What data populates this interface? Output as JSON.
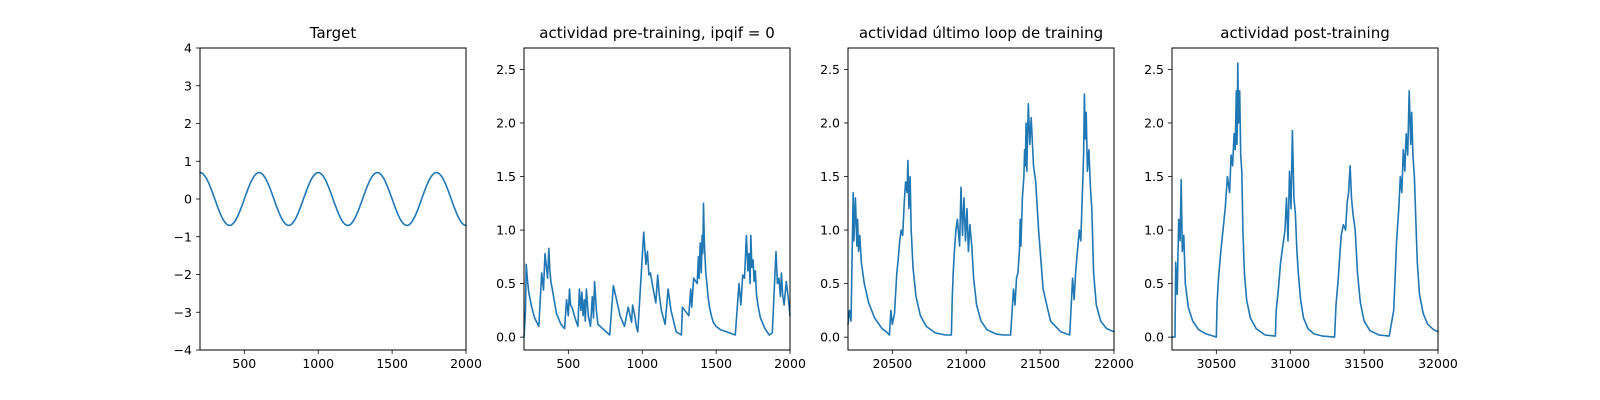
{
  "figure": {
    "background": "#ffffff",
    "line_color": "#1f77b4"
  },
  "chart_data": [
    {
      "type": "line",
      "title": "Target",
      "xlabel": "",
      "ylabel": "",
      "xlim": [
        200,
        2000
      ],
      "ylim": [
        -4,
        4
      ],
      "xticks": [
        500,
        1000,
        1500,
        2000
      ],
      "yticks": [
        -4,
        -3,
        -2,
        -1,
        0,
        1,
        2,
        3,
        4
      ],
      "grid": false,
      "series": [
        {
          "function": "sine",
          "amplitude": 0.7,
          "period": 400,
          "peak_x": 200,
          "points": 361
        }
      ]
    },
    {
      "type": "line",
      "title": "actividad pre-training, ipqif = 0",
      "xlabel": "",
      "ylabel": "",
      "xlim": [
        200,
        2000
      ],
      "ylim": [
        -0.12,
        2.7
      ],
      "xticks": [
        500,
        1000,
        1500,
        2000
      ],
      "yticks": [
        0.0,
        0.5,
        1.0,
        1.5,
        2.0,
        2.5
      ],
      "ytick_decimals": 1,
      "grid": false,
      "series": [
        {
          "x": [
            200,
            210,
            215,
            222,
            232,
            252,
            272,
            300,
            320,
            332,
            342,
            360,
            368,
            375,
            382,
            395,
            420,
            450,
            475,
            488,
            500,
            508,
            515,
            525,
            545,
            565,
            575,
            585,
            592,
            600,
            608,
            615,
            622,
            635,
            650,
            662,
            670,
            678,
            690,
            700,
            780,
            805,
            850,
            880,
            905,
            928,
            935,
            950,
            960,
            970,
            1010,
            1025,
            1035,
            1045,
            1055,
            1070,
            1092,
            1105,
            1115,
            1130,
            1155,
            1175,
            1195,
            1230,
            1265,
            1272,
            1315,
            1328,
            1335,
            1348,
            1372,
            1380,
            1385,
            1392,
            1400,
            1405,
            1410,
            1415,
            1420,
            1425,
            1430,
            1438,
            1445,
            1455,
            1468,
            1480,
            1500,
            1530,
            1570,
            1630,
            1655,
            1668,
            1680,
            1692,
            1705,
            1715,
            1722,
            1730,
            1735,
            1742,
            1750,
            1757,
            1765,
            1773,
            1783,
            1800,
            1830,
            1860,
            1880,
            1905,
            1915,
            1925,
            1935,
            1942,
            1950,
            1960,
            1975,
            1990,
            2000
          ],
          "y": [
            0.0,
            0.25,
            0.68,
            0.55,
            0.42,
            0.28,
            0.18,
            0.1,
            0.6,
            0.44,
            0.78,
            0.55,
            0.83,
            0.62,
            0.52,
            0.42,
            0.22,
            0.12,
            0.08,
            0.35,
            0.2,
            0.45,
            0.3,
            0.28,
            0.18,
            0.1,
            0.45,
            0.25,
            0.42,
            0.2,
            0.35,
            0.15,
            0.45,
            0.2,
            0.1,
            0.38,
            0.18,
            0.52,
            0.25,
            0.12,
            0.02,
            0.48,
            0.2,
            0.1,
            0.28,
            0.14,
            0.3,
            0.2,
            0.1,
            0.05,
            0.98,
            0.68,
            0.8,
            0.58,
            0.6,
            0.48,
            0.32,
            0.58,
            0.4,
            0.25,
            0.12,
            0.45,
            0.25,
            0.05,
            0.02,
            0.28,
            0.2,
            0.45,
            0.28,
            0.55,
            0.5,
            0.75,
            0.55,
            0.88,
            0.6,
            0.95,
            0.78,
            1.25,
            0.9,
            0.75,
            0.6,
            0.5,
            0.38,
            0.28,
            0.2,
            0.14,
            0.1,
            0.07,
            0.05,
            0.02,
            0.5,
            0.3,
            0.58,
            0.55,
            0.95,
            0.62,
            0.78,
            0.5,
            0.95,
            0.65,
            0.72,
            0.52,
            0.62,
            0.4,
            0.3,
            0.18,
            0.08,
            0.02,
            0.04,
            0.8,
            0.5,
            0.55,
            0.38,
            0.6,
            0.4,
            0.3,
            0.52,
            0.35,
            0.2
          ]
        }
      ]
    },
    {
      "type": "line",
      "title": "actividad último loop de training",
      "xlabel": "",
      "ylabel": "",
      "xlim": [
        20200,
        22000
      ],
      "ylim": [
        -0.12,
        2.7
      ],
      "xticks": [
        20500,
        21000,
        21500,
        22000
      ],
      "yticks": [
        0.0,
        0.5,
        1.0,
        1.5,
        2.0,
        2.5
      ],
      "ytick_decimals": 1,
      "grid": false,
      "series": [
        {
          "x": [
            20200,
            20210,
            20220,
            20235,
            20240,
            20250,
            20260,
            20265,
            20272,
            20280,
            20290,
            20310,
            20340,
            20380,
            20430,
            20460,
            20480,
            20490,
            20500,
            20515,
            20530,
            20540,
            20550,
            20560,
            20570,
            20580,
            20590,
            20600,
            20605,
            20612,
            20620,
            20628,
            20640,
            20660,
            20690,
            20730,
            20790,
            20860,
            20900,
            20905,
            20912,
            20920,
            20930,
            20940,
            20955,
            20965,
            20975,
            20985,
            20995,
            21005,
            21015,
            21025,
            21038,
            21050,
            21070,
            21100,
            21140,
            21200,
            21250,
            21300,
            21320,
            21330,
            21340,
            21350,
            21360,
            21365,
            21370,
            21380,
            21390,
            21395,
            21400,
            21405,
            21410,
            21420,
            21430,
            21440,
            21455,
            21470,
            21490,
            21520,
            21570,
            21640,
            21700,
            21720,
            21730,
            21740,
            21752,
            21765,
            21775,
            21785,
            21790,
            21795,
            21800,
            21805,
            21812,
            21820,
            21830,
            21840,
            21850,
            21862,
            21880,
            21910,
            21950,
            22000
          ],
          "y": [
            0.12,
            0.25,
            0.15,
            1.35,
            0.9,
            1.3,
            0.85,
            1.1,
            0.8,
            0.95,
            0.7,
            0.5,
            0.32,
            0.18,
            0.08,
            0.05,
            0.02,
            0.25,
            0.12,
            0.22,
            0.6,
            0.72,
            0.9,
            1.0,
            0.95,
            1.25,
            1.45,
            1.35,
            1.65,
            1.2,
            1.5,
            1.0,
            0.65,
            0.38,
            0.2,
            0.1,
            0.04,
            0.02,
            0.02,
            0.35,
            0.6,
            0.8,
            1.0,
            1.1,
            0.85,
            1.4,
            0.95,
            1.3,
            0.9,
            1.2,
            0.8,
            1.05,
            0.85,
            0.55,
            0.3,
            0.15,
            0.07,
            0.03,
            0.02,
            0.02,
            0.45,
            0.3,
            0.55,
            0.6,
            0.8,
            1.1,
            0.85,
            1.3,
            1.5,
            1.75,
            1.6,
            2.0,
            1.55,
            2.18,
            1.8,
            2.05,
            1.6,
            1.45,
            1.0,
            0.45,
            0.15,
            0.05,
            0.02,
            0.55,
            0.35,
            0.6,
            0.8,
            1.0,
            0.9,
            1.3,
            1.5,
            1.75,
            2.27,
            1.85,
            2.1,
            1.55,
            1.75,
            1.4,
            1.2,
            0.6,
            0.3,
            0.15,
            0.08,
            0.05
          ]
        }
      ]
    },
    {
      "type": "line",
      "title": "actividad post-training",
      "xlabel": "",
      "ylabel": "",
      "xlim": [
        30200,
        32000
      ],
      "ylim": [
        -0.12,
        2.7
      ],
      "xticks": [
        30500,
        31000,
        31500,
        32000
      ],
      "yticks": [
        0.0,
        0.5,
        1.0,
        1.5,
        2.0,
        2.5
      ],
      "ytick_decimals": 1,
      "grid": false,
      "series": [
        {
          "x": [
            30200,
            30220,
            30225,
            30235,
            30245,
            30255,
            30262,
            30270,
            30280,
            30290,
            30310,
            30340,
            30380,
            30430,
            30480,
            30500,
            30505,
            30515,
            30530,
            30545,
            30560,
            30575,
            30590,
            30600,
            30610,
            30620,
            30628,
            30635,
            30640,
            30645,
            30650,
            30658,
            30665,
            30672,
            30680,
            30690,
            30705,
            30730,
            30770,
            30830,
            30900,
            30905,
            30920,
            30935,
            30950,
            30965,
            30975,
            30985,
            30995,
            31005,
            31015,
            31025,
            31035,
            31045,
            31055,
            31070,
            31090,
            31120,
            31160,
            31220,
            31300,
            31310,
            31325,
            31335,
            31345,
            31360,
            31375,
            31385,
            31395,
            31405,
            31415,
            31425,
            31440,
            31455,
            31475,
            31500,
            31540,
            31600,
            31670,
            31700,
            31710,
            31720,
            31735,
            31745,
            31755,
            31765,
            31775,
            31785,
            31795,
            31805,
            31815,
            31822,
            31830,
            31840,
            31850,
            31860,
            31875,
            31900,
            31930,
            31970,
            32000
          ],
          "y": [
            0.0,
            0.0,
            0.7,
            0.4,
            1.1,
            0.9,
            1.47,
            0.8,
            0.95,
            0.5,
            0.28,
            0.15,
            0.07,
            0.03,
            0.01,
            0.0,
            0.32,
            0.55,
            0.8,
            1.0,
            1.2,
            1.5,
            1.35,
            1.7,
            1.6,
            1.9,
            1.75,
            2.3,
            1.8,
            2.56,
            2.0,
            2.3,
            1.7,
            1.55,
            1.0,
            0.6,
            0.35,
            0.18,
            0.08,
            0.02,
            0.01,
            0.25,
            0.45,
            0.7,
            0.85,
            1.0,
            1.3,
            0.9,
            1.55,
            1.2,
            1.93,
            1.3,
            1.15,
            0.8,
            0.6,
            0.35,
            0.18,
            0.08,
            0.03,
            0.01,
            0.0,
            0.3,
            0.55,
            0.75,
            0.95,
            1.05,
            1.0,
            1.25,
            1.35,
            1.6,
            1.3,
            1.15,
            1.0,
            0.6,
            0.32,
            0.15,
            0.06,
            0.02,
            0.01,
            0.25,
            0.55,
            0.9,
            1.2,
            1.5,
            1.35,
            1.75,
            1.55,
            1.9,
            1.7,
            2.3,
            1.8,
            2.1,
            1.7,
            1.5,
            1.1,
            0.7,
            0.4,
            0.22,
            0.12,
            0.07,
            0.05
          ]
        }
      ]
    }
  ]
}
